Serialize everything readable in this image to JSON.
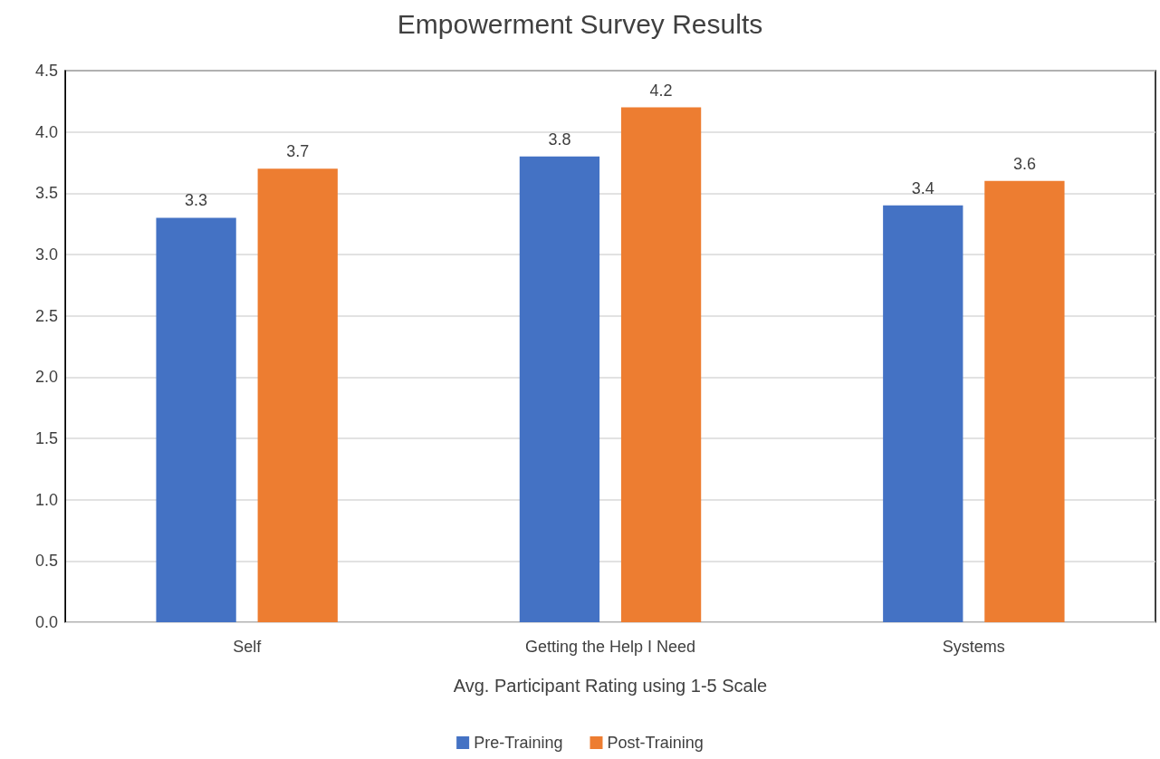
{
  "chart_data": {
    "type": "bar",
    "title": "Empowerment Survey Results",
    "xlabel": "Avg. Participant Rating using 1-5 Scale",
    "categories": [
      "Self",
      "Getting the Help I Need",
      "Systems"
    ],
    "series": [
      {
        "name": "Pre-Training",
        "color": "#4472c4",
        "values": [
          3.3,
          3.8,
          3.4
        ]
      },
      {
        "name": "Post-Training",
        "color": "#ed7d31",
        "values": [
          3.7,
          4.2,
          3.6
        ]
      }
    ],
    "ylim": [
      0,
      4.5
    ],
    "yticks": [
      {
        "value": 0,
        "label": "0.0"
      },
      0.5,
      {
        "value": 1,
        "label": "1.0"
      },
      1.5,
      {
        "value": 2,
        "label": "2.0"
      },
      2.5,
      {
        "value": 3,
        "label": "3.0"
      },
      3.5,
      {
        "value": 4,
        "label": "4.0"
      },
      4.5
    ],
    "grid": "y",
    "legend": "bottom",
    "data_labels": true
  }
}
